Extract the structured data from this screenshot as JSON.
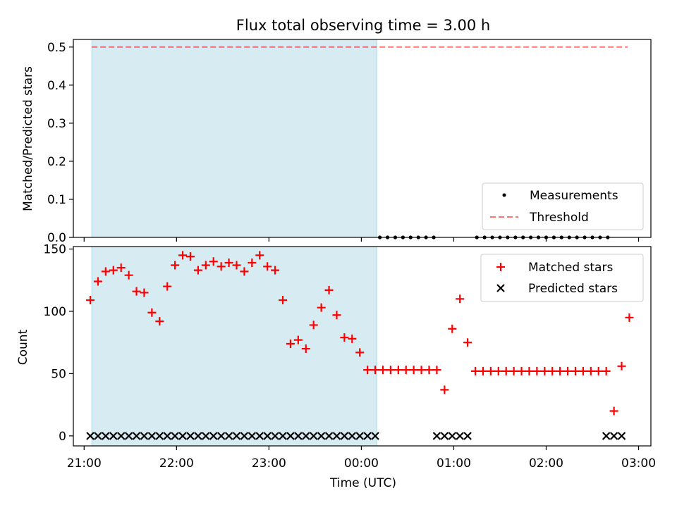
{
  "title": "Flux total observing time = 3.00 h",
  "colors": {
    "shade": "#add8e6",
    "threshold": "#ff0000",
    "matched": "#ff0000",
    "predicted": "#000000",
    "measurements": "#000000"
  },
  "chart_data": [
    {
      "type": "scatter",
      "ylabel": "Matched/Predicted stars",
      "ylim": [
        0,
        0.52
      ],
      "yticks": [
        0.0,
        0.1,
        0.2,
        0.3,
        0.4,
        0.5
      ],
      "ytick_labels": [
        "0.0",
        "0.1",
        "0.2",
        "0.3",
        "0.4",
        "0.5"
      ],
      "legend_position": "lower-right",
      "shaded_interval": [
        "21:05",
        "00:10"
      ],
      "threshold": {
        "name": "Threshold",
        "value": 0.5,
        "x_range": [
          "21:05",
          "02:53"
        ]
      },
      "series": [
        {
          "name": "Measurements",
          "marker": "dot",
          "x": [
            "00:12",
            "00:17",
            "00:22",
            "00:27",
            "00:32",
            "00:37",
            "00:42",
            "00:47",
            "01:15",
            "01:20",
            "01:25",
            "01:30",
            "01:35",
            "01:40",
            "01:45",
            "01:50",
            "01:55",
            "02:00",
            "02:05",
            "02:10",
            "02:15",
            "02:20",
            "02:25",
            "02:30",
            "02:35",
            "02:40"
          ],
          "y": [
            0,
            0,
            0,
            0,
            0,
            0,
            0,
            0,
            0,
            0,
            0,
            0,
            0,
            0,
            0,
            0,
            0,
            0,
            0,
            0,
            0,
            0,
            0,
            0,
            0,
            0
          ]
        }
      ]
    },
    {
      "type": "scatter",
      "xlabel": "Time (UTC)",
      "ylabel": "Count",
      "ylim": [
        -8,
        152
      ],
      "yticks": [
        0,
        50,
        100,
        150
      ],
      "ytick_labels": [
        "0",
        "50",
        "100",
        "150"
      ],
      "xticks": [
        "21:00",
        "22:00",
        "23:00",
        "00:00",
        "01:00",
        "02:00",
        "03:00"
      ],
      "xtick_labels": [
        "21:00",
        "22:00",
        "23:00",
        "00:00",
        "01:00",
        "02:00",
        "03:00"
      ],
      "xlim": [
        "20:53",
        "03:08"
      ],
      "legend_position": "upper-right",
      "shaded_interval": [
        "21:05",
        "00:10"
      ],
      "series": [
        {
          "name": "Matched stars",
          "marker": "plus",
          "x": [
            "21:04",
            "21:09",
            "21:14",
            "21:19",
            "21:24",
            "21:29",
            "21:34",
            "21:39",
            "21:44",
            "21:49",
            "21:54",
            "21:59",
            "22:04",
            "22:09",
            "22:14",
            "22:19",
            "22:24",
            "22:29",
            "22:34",
            "22:39",
            "22:44",
            "22:49",
            "22:54",
            "22:59",
            "23:04",
            "23:09",
            "23:14",
            "23:19",
            "23:24",
            "23:29",
            "23:34",
            "23:39",
            "23:44",
            "23:49",
            "23:54",
            "23:59",
            "00:04",
            "00:09",
            "00:14",
            "00:19",
            "00:24",
            "00:29",
            "00:34",
            "00:39",
            "00:44",
            "00:49",
            "00:54",
            "00:59",
            "01:04",
            "01:09",
            "01:14",
            "01:19",
            "01:24",
            "01:29",
            "01:34",
            "01:39",
            "01:44",
            "01:49",
            "01:54",
            "01:59",
            "02:04",
            "02:09",
            "02:14",
            "02:19",
            "02:24",
            "02:29",
            "02:34",
            "02:39",
            "02:44",
            "02:49",
            "02:54"
          ],
          "y": [
            109,
            124,
            132,
            133,
            135,
            129,
            116,
            115,
            99,
            92,
            120,
            137,
            145,
            144,
            133,
            137,
            140,
            136,
            139,
            137,
            132,
            139,
            145,
            136,
            133,
            109,
            74,
            77,
            70,
            89,
            103,
            117,
            97,
            79,
            78,
            67,
            53,
            53,
            53,
            53,
            53,
            53,
            53,
            53,
            53,
            53,
            37,
            86,
            110,
            75,
            52,
            52,
            52,
            52,
            52,
            52,
            52,
            52,
            52,
            52,
            52,
            52,
            52,
            52,
            52,
            52,
            52,
            52,
            20,
            56,
            95
          ]
        },
        {
          "name": "Predicted stars",
          "marker": "x",
          "x": [
            "21:04",
            "21:09",
            "21:14",
            "21:19",
            "21:24",
            "21:29",
            "21:34",
            "21:39",
            "21:44",
            "21:49",
            "21:54",
            "21:59",
            "22:04",
            "22:09",
            "22:14",
            "22:19",
            "22:24",
            "22:29",
            "22:34",
            "22:39",
            "22:44",
            "22:49",
            "22:54",
            "22:59",
            "23:04",
            "23:09",
            "23:14",
            "23:19",
            "23:24",
            "23:29",
            "23:34",
            "23:39",
            "23:44",
            "23:49",
            "23:54",
            "23:59",
            "00:04",
            "00:09",
            "00:49",
            "00:54",
            "00:59",
            "01:04",
            "01:09",
            "02:39",
            "02:44",
            "02:49"
          ],
          "y": [
            0,
            0,
            0,
            0,
            0,
            0,
            0,
            0,
            0,
            0,
            0,
            0,
            0,
            0,
            0,
            0,
            0,
            0,
            0,
            0,
            0,
            0,
            0,
            0,
            0,
            0,
            0,
            0,
            0,
            0,
            0,
            0,
            0,
            0,
            0,
            0,
            0,
            0,
            0,
            0,
            0,
            0,
            0,
            0,
            0,
            0
          ]
        }
      ]
    }
  ]
}
